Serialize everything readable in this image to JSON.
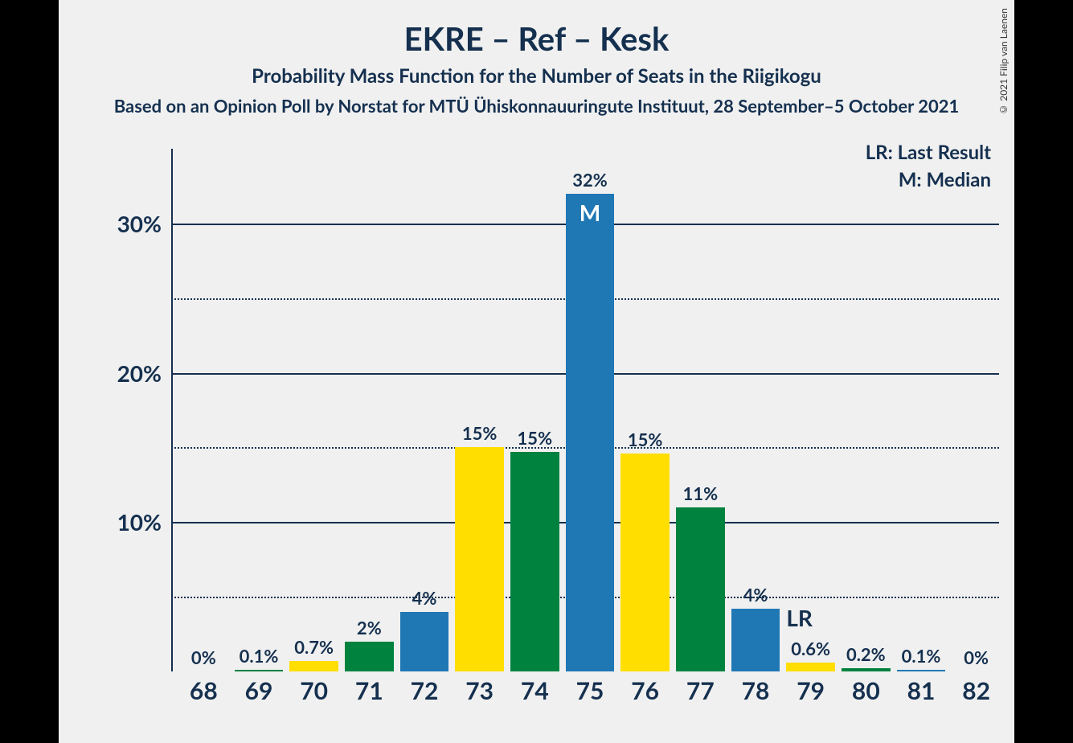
{
  "title": "EKRE – Ref – Kesk",
  "title_fontsize": 40,
  "subtitle": "Probability Mass Function for the Number of Seats in the Riigikogu",
  "subtitle_fontsize": 24,
  "subtitle2": "Based on an Opinion Poll by Norstat for MTÜ Ühiskonnauuringute Instituut, 28 September–5 October 2021",
  "subtitle2_fontsize": 22,
  "copyright": "© 2021 Filip van Laenen",
  "text_color": "#15304f",
  "background_color": "#f0f0f0",
  "legend": {
    "lr": "LR: Last Result",
    "m": "M: Median"
  },
  "chart": {
    "type": "bar",
    "ylim": [
      0,
      35
    ],
    "yticks": [
      {
        "v": 5,
        "label": "",
        "style": "dotted"
      },
      {
        "v": 10,
        "label": "10%",
        "style": "solid"
      },
      {
        "v": 15,
        "label": "",
        "style": "dotted"
      },
      {
        "v": 20,
        "label": "20%",
        "style": "solid"
      },
      {
        "v": 25,
        "label": "",
        "style": "dotted"
      },
      {
        "v": 30,
        "label": "30%",
        "style": "solid"
      }
    ],
    "colors": {
      "blue": "#1f78b4",
      "green": "#00823f",
      "yellow": "#ffde00"
    },
    "bar_width_ratio": 0.88,
    "categories": [
      "68",
      "69",
      "70",
      "71",
      "72",
      "73",
      "74",
      "75",
      "76",
      "77",
      "78",
      "79",
      "80",
      "81",
      "82"
    ],
    "bars": [
      {
        "x": "68",
        "value": 0,
        "label": "0%",
        "color": "blue"
      },
      {
        "x": "69",
        "value": 0.1,
        "label": "0.1%",
        "color": "green"
      },
      {
        "x": "70",
        "value": 0.7,
        "label": "0.7%",
        "color": "yellow"
      },
      {
        "x": "71",
        "value": 2,
        "label": "2%",
        "color": "green"
      },
      {
        "x": "72",
        "value": 4,
        "label": "4%",
        "color": "blue"
      },
      {
        "x": "73",
        "value": 15,
        "label": "15%",
        "color": "yellow"
      },
      {
        "x": "74",
        "value": 14.7,
        "label": "15%",
        "color": "green"
      },
      {
        "x": "75",
        "value": 32,
        "label": "32%",
        "color": "blue",
        "inner_label": "M"
      },
      {
        "x": "76",
        "value": 14.6,
        "label": "15%",
        "color": "yellow"
      },
      {
        "x": "77",
        "value": 11,
        "label": "11%",
        "color": "green"
      },
      {
        "x": "78",
        "value": 4.2,
        "label": "4%",
        "color": "blue"
      },
      {
        "x": "79",
        "value": 0.6,
        "label": "0.6%",
        "color": "yellow"
      },
      {
        "x": "80",
        "value": 0.2,
        "label": "0.2%",
        "color": "green"
      },
      {
        "x": "81",
        "value": 0.1,
        "label": "0.1%",
        "color": "blue"
      },
      {
        "x": "82",
        "value": 0,
        "label": "0%",
        "color": "green"
      }
    ],
    "lr_marker": {
      "after_x": "78",
      "label": "LR"
    }
  }
}
